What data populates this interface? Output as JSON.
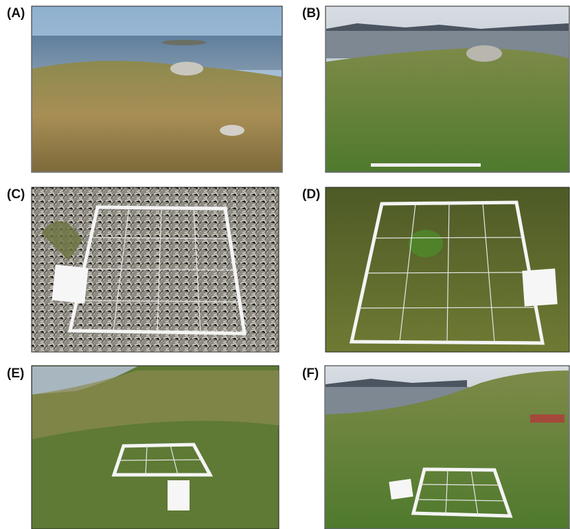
{
  "panels": [
    {
      "label": "(A)"
    },
    {
      "label": "(B)"
    },
    {
      "label": "(C)"
    },
    {
      "label": "(D)"
    },
    {
      "label": "(E)"
    },
    {
      "label": "(F)"
    }
  ]
}
